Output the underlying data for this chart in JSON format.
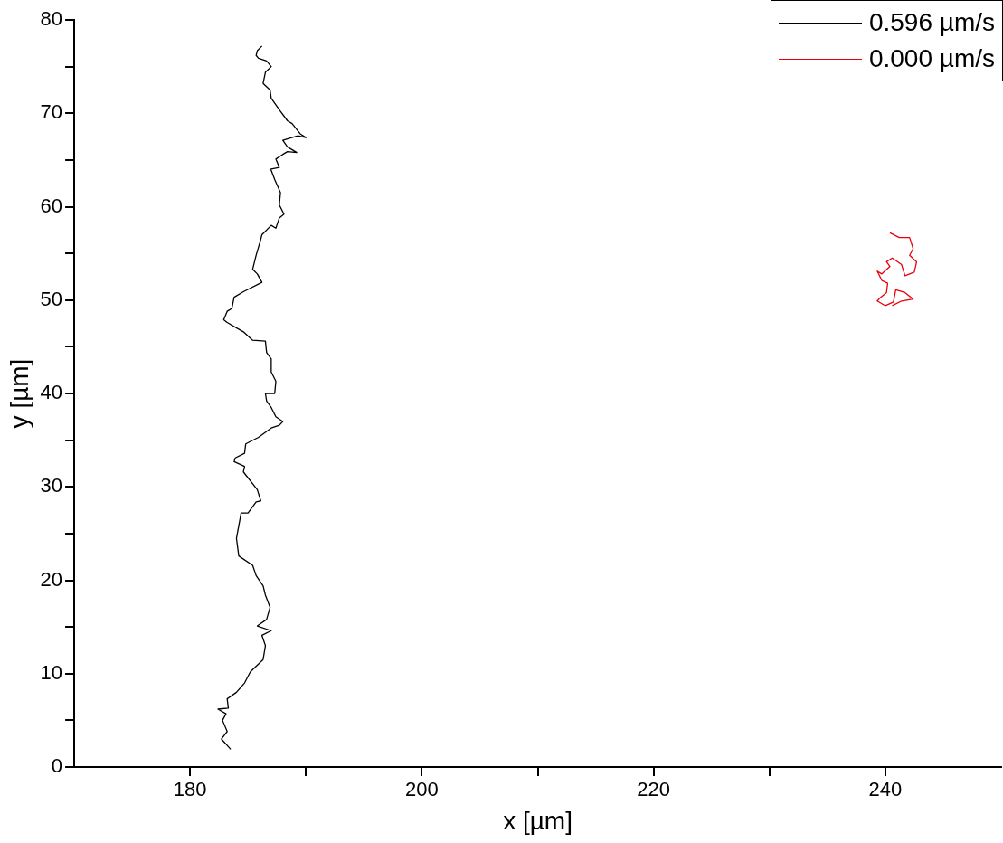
{
  "chart_data": {
    "type": "line",
    "xlabel": "x [µm]",
    "ylabel": "y [µm]",
    "xlim": [
      170,
      250
    ],
    "ylim": [
      0,
      80
    ],
    "xticks": [
      180,
      {
        "value": 190,
        "label": null
      },
      200,
      {
        "value": 210,
        "label": null
      },
      220,
      {
        "value": 230,
        "label": null
      },
      240
    ],
    "yticks": [
      0,
      {
        "value": 5,
        "label": null
      },
      10,
      {
        "value": 15,
        "label": null
      },
      20,
      {
        "value": 25,
        "label": null
      },
      30,
      {
        "value": 35,
        "label": null
      },
      40,
      {
        "value": 45,
        "label": null
      },
      50,
      {
        "value": 55,
        "label": null
      },
      60,
      {
        "value": 65,
        "label": null
      },
      70,
      {
        "value": 75,
        "label": null
      },
      80
    ],
    "grid": false,
    "legend": "top right",
    "marker": "none",
    "line_style": "solid",
    "series": [
      {
        "name": "0.596 µm/s",
        "color": "#000000",
        "x": [
          183.5,
          182.7,
          183.2,
          182.8,
          183.1,
          182.4,
          183.3,
          183.2,
          184.0,
          184.7,
          185.2,
          186.3,
          186.5,
          186.2,
          187.0,
          185.8,
          186.6,
          186.9,
          186.5,
          186.3,
          185.7,
          185.4,
          184.2,
          184.0,
          184.3,
          184.4,
          185.0,
          185.7,
          186.1,
          185.8,
          184.6,
          184.7,
          183.8,
          183.9,
          184.7,
          184.8,
          185.9,
          187.0,
          187.7,
          188.0,
          187.4,
          187.0,
          186.6,
          186.5,
          187.3,
          187.4,
          187.0,
          187.0,
          186.6,
          186.5,
          185.4,
          184.6,
          183.2,
          182.9,
          183.2,
          183.6,
          183.8,
          184.6,
          186.2,
          185.8,
          185.4,
          185.7,
          186.1,
          186.2,
          187.0,
          187.4,
          187.7,
          188.1,
          187.7,
          187.8,
          187.3,
          187.0,
          186.9,
          187.7,
          187.4,
          188.0,
          188.4,
          189.2,
          188.4,
          188.0,
          189.3,
          190.0,
          189.5,
          188.8,
          188.4,
          187.8,
          187.0,
          186.9,
          186.3,
          186.5,
          187.0,
          186.6,
          185.9,
          185.7,
          185.8,
          186.2
        ],
        "values": [
          1.9,
          3.0,
          3.8,
          5.0,
          5.7,
          6.2,
          6.3,
          7.3,
          8.0,
          9.0,
          10.2,
          11.5,
          13.0,
          14.1,
          14.6,
          15.1,
          15.8,
          17.1,
          18.4,
          19.4,
          20.5,
          21.6,
          22.6,
          24.5,
          26.5,
          27.2,
          27.2,
          28.4,
          28.5,
          29.7,
          31.6,
          32.2,
          32.7,
          33.1,
          33.6,
          34.6,
          35.3,
          36.3,
          36.6,
          37.0,
          37.5,
          38.5,
          39.2,
          40.0,
          40.0,
          41.3,
          42.3,
          43.7,
          44.4,
          45.6,
          45.7,
          46.6,
          47.6,
          47.9,
          48.8,
          49.1,
          50.3,
          50.9,
          51.9,
          52.8,
          53.3,
          54.8,
          56.5,
          57.0,
          58.0,
          57.7,
          58.8,
          59.2,
          60.2,
          61.5,
          62.9,
          63.9,
          64.0,
          64.2,
          65.1,
          65.6,
          65.9,
          65.8,
          66.4,
          67.1,
          67.6,
          67.4,
          67.8,
          68.9,
          69.2,
          70.2,
          71.6,
          72.5,
          73.2,
          74.4,
          75.0,
          75.6,
          75.9,
          76.2,
          76.7,
          77.2
        ]
      },
      {
        "name": "0.000 µm/s",
        "color": "#e8000b",
        "x": [
          240.4,
          241.2,
          242.1,
          242.4,
          242.1,
          242.7,
          242.5,
          241.7,
          241.4,
          240.6,
          240.1,
          240.4,
          239.7,
          239.3,
          239.7,
          240.2,
          240.1,
          239.6,
          239.3,
          240.0,
          240.7,
          240.9,
          241.7,
          242.4,
          241.4,
          240.6
        ],
        "values": [
          57.2,
          56.7,
          56.7,
          55.5,
          54.8,
          54.1,
          53.0,
          52.6,
          53.8,
          54.5,
          54.1,
          53.6,
          52.8,
          53.1,
          52.1,
          51.8,
          50.8,
          50.3,
          49.9,
          49.4,
          49.8,
          51.1,
          50.8,
          50.1,
          49.9,
          49.4
        ]
      }
    ]
  }
}
